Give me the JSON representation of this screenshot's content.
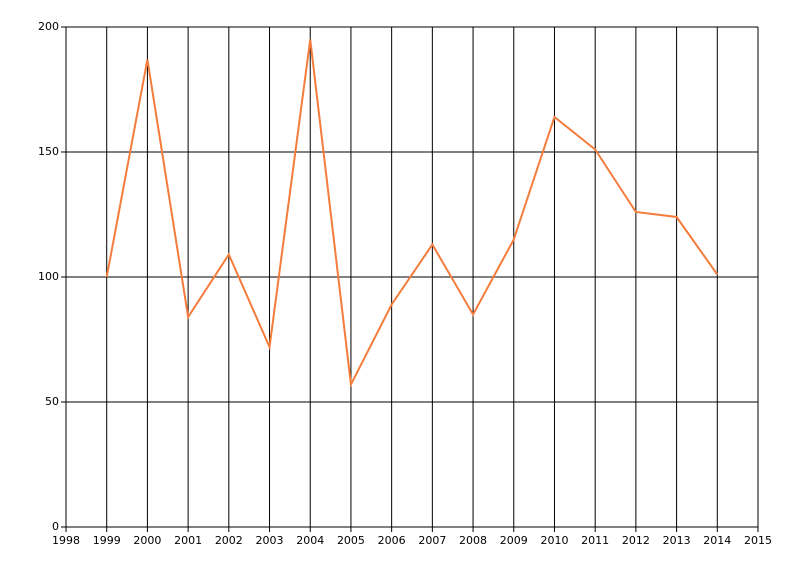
{
  "chart_data": {
    "type": "line",
    "x": [
      1999,
      2000,
      2001,
      2002,
      2003,
      2004,
      2005,
      2006,
      2007,
      2008,
      2009,
      2010,
      2011,
      2012,
      2013,
      2014
    ],
    "series": [
      {
        "color": "#f47c3c",
        "values": [
          100,
          187,
          84,
          109,
          72,
          195,
          57,
          89,
          113,
          85,
          115,
          164,
          151,
          126,
          124,
          101
        ]
      }
    ],
    "xlim": [
      1998,
      2015
    ],
    "xticks": [
      1998,
      1999,
      2000,
      2001,
      2002,
      2003,
      2004,
      2005,
      2006,
      2007,
      2008,
      2009,
      2010,
      2011,
      2012,
      2013,
      2014,
      2015
    ],
    "ylim": [
      0,
      200
    ],
    "yticks": [
      0,
      50,
      100,
      150,
      200
    ],
    "grid": true
  }
}
